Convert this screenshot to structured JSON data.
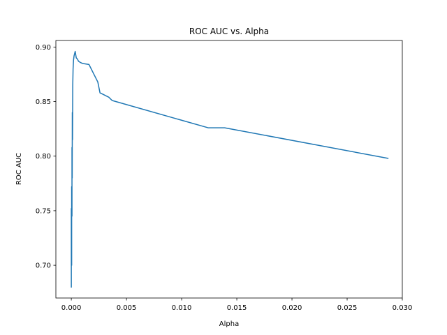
{
  "chart_data": {
    "type": "line",
    "title": "ROC AUC vs. Alpha",
    "xlabel": "Alpha",
    "ylabel": "ROC AUC",
    "xlim": [
      -0.0014,
      0.03
    ],
    "ylim": [
      0.67,
      0.906
    ],
    "xticks": [
      0.0,
      0.005,
      0.01,
      0.015,
      0.02,
      0.025,
      0.03
    ],
    "xtick_labels": [
      "0.000",
      "0.005",
      "0.010",
      "0.015",
      "0.020",
      "0.025",
      "0.030"
    ],
    "yticks": [
      0.7,
      0.75,
      0.8,
      0.85,
      0.9
    ],
    "ytick_labels": [
      "0.70",
      "0.75",
      "0.80",
      "0.85",
      "0.90"
    ],
    "grid": false,
    "series": [
      {
        "color": "#1f77b4",
        "points": [
          [
            0.0,
            0.68
          ],
          [
            0.0,
            0.752
          ],
          [
            3e-05,
            0.7
          ],
          [
            3e-05,
            0.772
          ],
          [
            6e-05,
            0.745
          ],
          [
            6e-05,
            0.808
          ],
          [
            8e-05,
            0.78
          ],
          [
            9e-05,
            0.84
          ],
          [
            0.00011,
            0.815
          ],
          [
            0.00013,
            0.865
          ],
          [
            0.00016,
            0.88
          ],
          [
            0.0002,
            0.888
          ],
          [
            0.00025,
            0.892
          ],
          [
            0.0003,
            0.894
          ],
          [
            0.00035,
            0.896
          ],
          [
            0.0004,
            0.893
          ],
          [
            0.00045,
            0.89
          ],
          [
            0.00055,
            0.889
          ],
          [
            0.00065,
            0.887
          ],
          [
            0.0008,
            0.886
          ],
          [
            0.001,
            0.885
          ],
          [
            0.0016,
            0.884
          ],
          [
            0.002,
            0.876
          ],
          [
            0.0024,
            0.868
          ],
          [
            0.0026,
            0.858
          ],
          [
            0.0028,
            0.857
          ],
          [
            0.0034,
            0.854
          ],
          [
            0.0037,
            0.851
          ],
          [
            0.0124,
            0.826
          ],
          [
            0.0139,
            0.826
          ],
          [
            0.0287,
            0.798
          ]
        ]
      }
    ]
  }
}
